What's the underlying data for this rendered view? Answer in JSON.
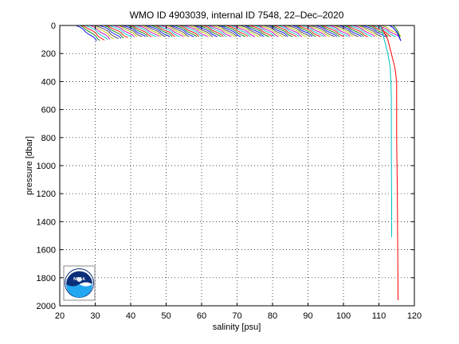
{
  "chart_data": {
    "type": "line",
    "title": "WMO ID 4903039, internal ID 7548, 22–Dec–2020",
    "xlabel": "salinity [psu]",
    "ylabel": "pressure [dbar]",
    "xlim": [
      20,
      120
    ],
    "ylim": [
      0,
      2000
    ],
    "y_reversed": true,
    "grid": "dotted",
    "xticks": [
      20,
      30,
      40,
      50,
      60,
      70,
      80,
      90,
      100,
      110,
      120
    ],
    "yticks": [
      0,
      200,
      400,
      600,
      800,
      1000,
      1200,
      1400,
      1600,
      1800,
      2000
    ],
    "surface_profiles": {
      "count": 90,
      "salinity_start_range": [
        24.5,
        110.5
      ],
      "salinity_span": 6,
      "pressure_range": [
        0,
        80
      ],
      "colors": [
        "#0000ff",
        "#008000",
        "#ff0000",
        "#00bfbf",
        "#bf00bf",
        "#bfbf00",
        "#404040"
      ]
    },
    "series": [
      {
        "color": "#ff0000",
        "x": [
          110.5,
          112.5,
          113.5,
          114.5,
          115.0,
          115.0,
          115.2,
          115.3,
          115.4
        ],
        "y": [
          0,
          100,
          200,
          300,
          400,
          800,
          1200,
          1600,
          1960
        ]
      },
      {
        "color": "#00bfbf",
        "x": [
          110.5,
          111.5,
          112.5,
          113.2,
          113.5,
          113.5,
          113.6,
          113.6
        ],
        "y": [
          0,
          100,
          200,
          300,
          500,
          900,
          1300,
          1510
        ]
      },
      {
        "color": "#008000",
        "x": [
          114.0,
          114.8,
          115.5,
          116.0
        ],
        "y": [
          0,
          20,
          50,
          100
        ]
      },
      {
        "color": "#0000ff",
        "x": [
          113.0,
          114.0,
          115.0,
          116.2
        ],
        "y": [
          0,
          15,
          45,
          110
        ]
      }
    ]
  },
  "logo": {
    "text": "NOAA",
    "colors": {
      "navy": "#0b2f7a",
      "sky": "#22a7f0"
    }
  }
}
